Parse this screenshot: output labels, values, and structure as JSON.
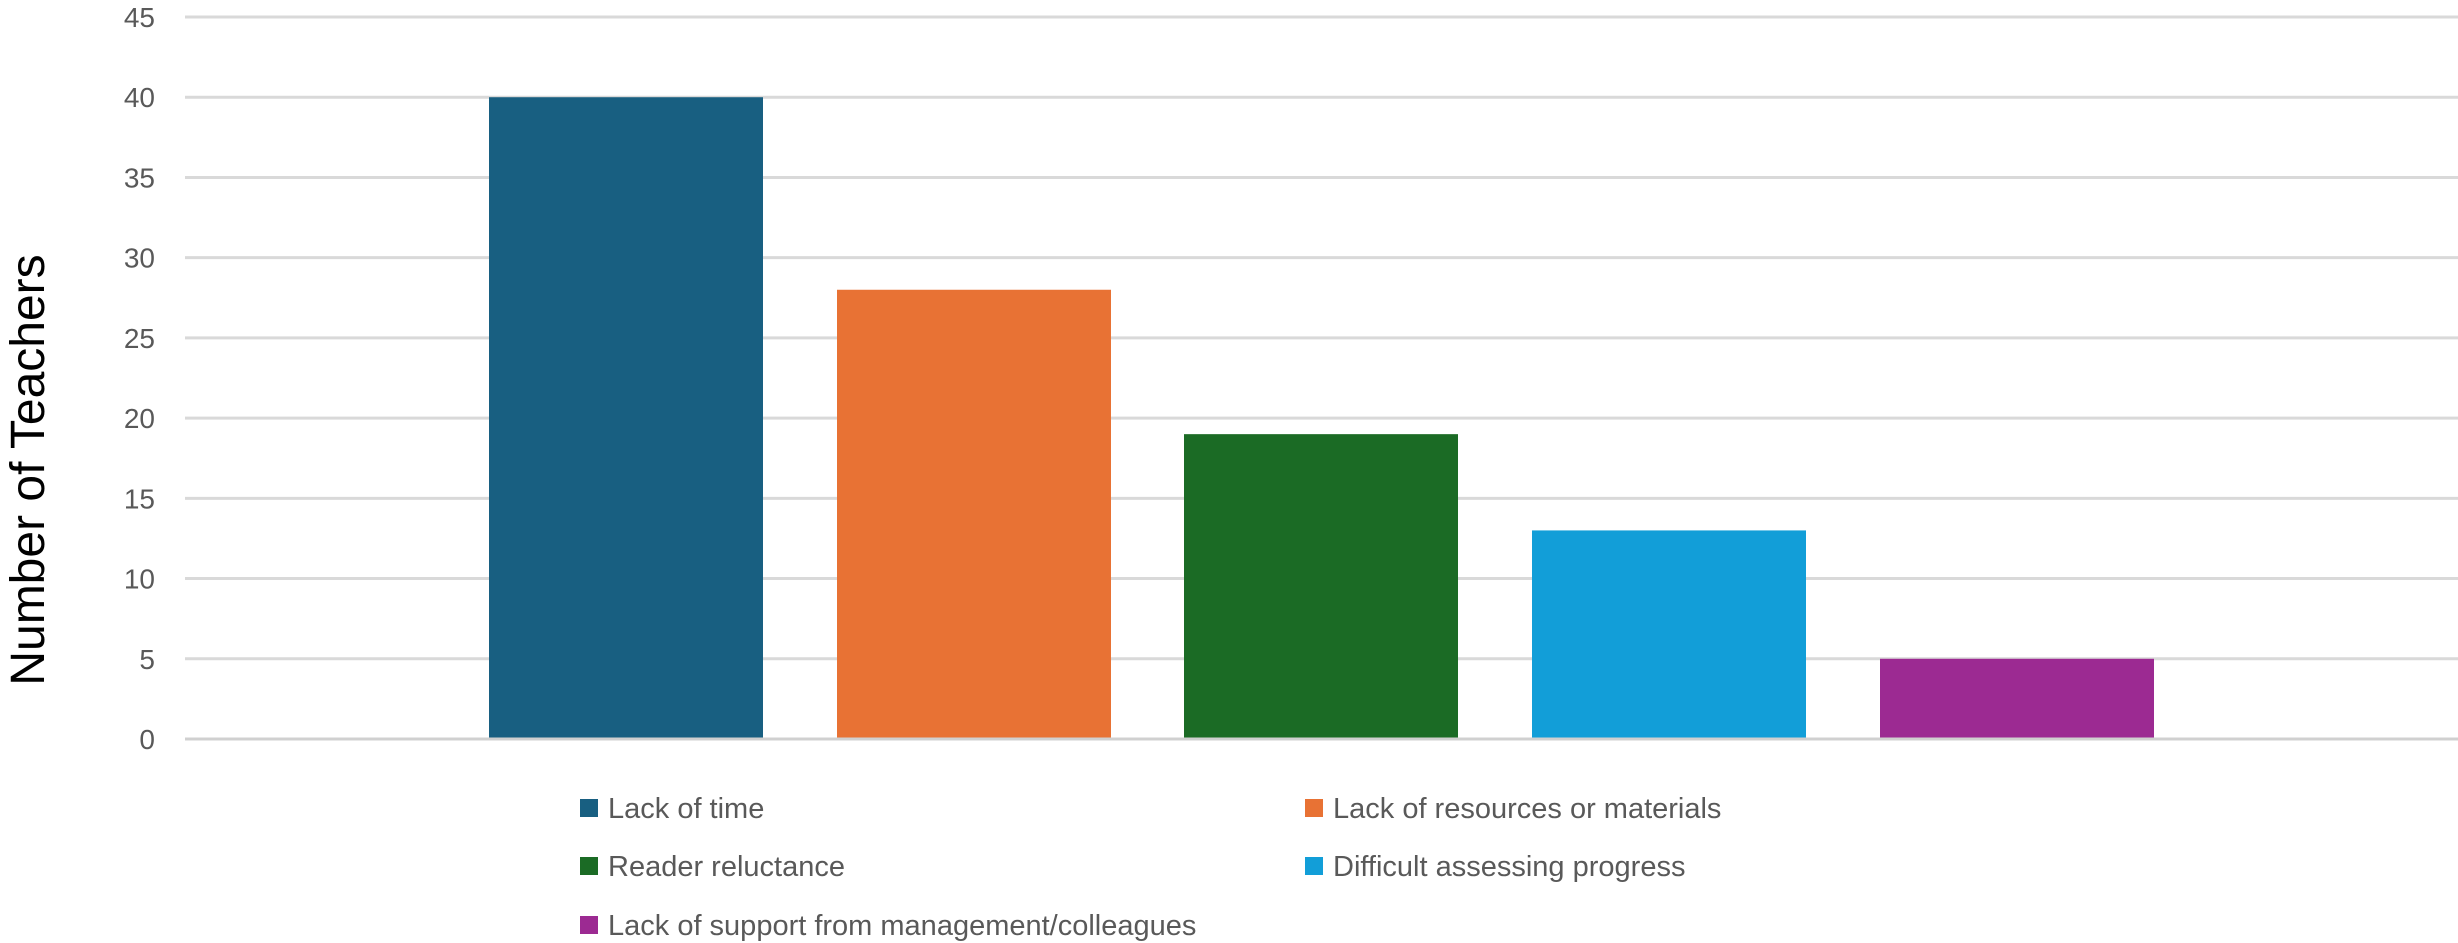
{
  "chart_data": {
    "type": "bar",
    "title": "",
    "xlabel": "",
    "ylabel": "Number of Teachers",
    "ylim": [
      0,
      45
    ],
    "yticks": [
      0,
      5,
      10,
      15,
      20,
      25,
      30,
      35,
      40,
      45
    ],
    "grid": true,
    "legend_position": "bottom",
    "series": [
      {
        "name": "Lack of time",
        "value": 40,
        "color": "#185F81"
      },
      {
        "name": "Lack of resources or materials",
        "value": 28,
        "color": "#E87234"
      },
      {
        "name": "Reader reluctance",
        "value": 19,
        "color": "#1B6B25"
      },
      {
        "name": "Difficult assessing progress",
        "value": 13,
        "color": "#129ED8"
      },
      {
        "name": "Lack of support from management/colleagues",
        "value": 5,
        "color": "#9C2A92"
      }
    ]
  }
}
